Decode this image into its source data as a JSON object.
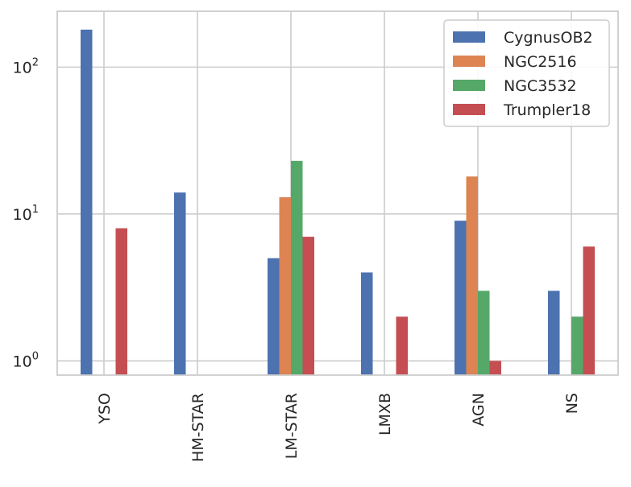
{
  "chart_data": {
    "type": "bar",
    "scale": "log",
    "categories": [
      "YSO",
      "HM-STAR",
      "LM-STAR",
      "LMXB",
      "AGN",
      "NS"
    ],
    "series": [
      {
        "name": "CygnusOB2",
        "color": "#4c72b0",
        "values": [
          180,
          14,
          5,
          4,
          9,
          3
        ]
      },
      {
        "name": "NGC2516",
        "color": "#dd8452",
        "values": [
          null,
          null,
          13,
          null,
          18,
          null
        ]
      },
      {
        "name": "NGC3532",
        "color": "#55a868",
        "values": [
          null,
          null,
          23,
          null,
          3,
          2
        ]
      },
      {
        "name": "Trumpler18",
        "color": "#c44e52",
        "values": [
          8,
          null,
          7,
          2,
          1,
          6
        ]
      }
    ],
    "yticks": [
      {
        "value": 1,
        "base": "10",
        "exp": "0"
      },
      {
        "value": 10,
        "base": "10",
        "exp": "1"
      },
      {
        "value": 100,
        "base": "10",
        "exp": "2"
      }
    ],
    "ylim": [
      0.8,
      240
    ],
    "legend_position": "top-right",
    "grid": true
  }
}
